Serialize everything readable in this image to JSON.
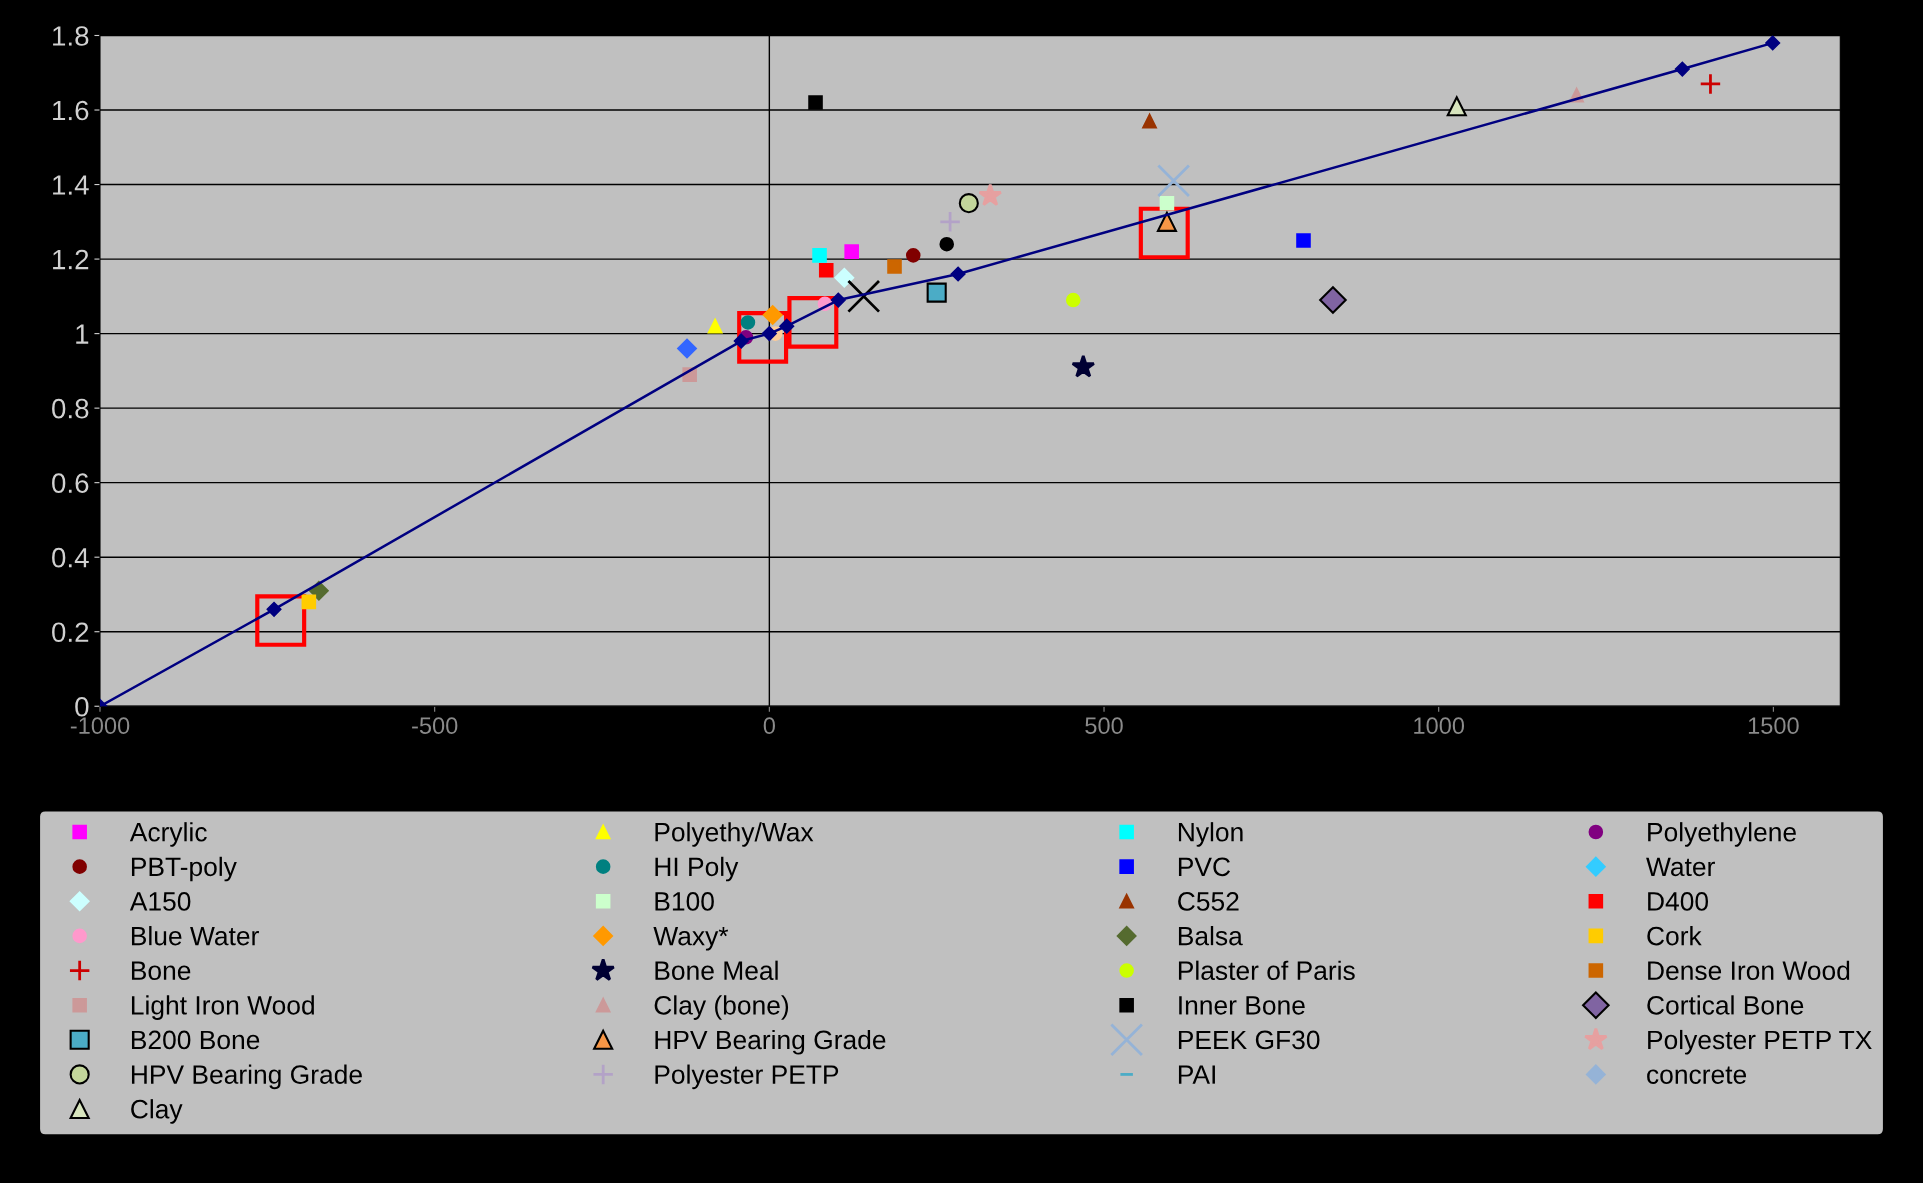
{
  "chart_data": {
    "type": "scatter",
    "xlim": [
      -1000,
      1600
    ],
    "xticks": [
      -1000,
      -500,
      0,
      500,
      1000,
      1500
    ],
    "ylim": [
      0,
      1.8
    ],
    "yticks": [
      0,
      0.2,
      0.4,
      0.6,
      0.8,
      1,
      1.2,
      1.4,
      1.6,
      1.8
    ],
    "grid": "y",
    "legend": "bottom",
    "ref_lines": [
      {
        "axis": "x",
        "value": 0,
        "color": "#000000"
      }
    ],
    "series": [
      {
        "type": "line",
        "color": "#000080",
        "marker": "diamond",
        "x": [
          -1000,
          -740,
          -42,
          0,
          26,
          103,
          282,
          1364,
          1499
        ],
        "values": [
          0,
          0.26,
          0.98,
          1.0,
          1.02,
          1.09,
          1.16,
          1.71,
          1.78
        ]
      },
      {
        "name": "Acrylic",
        "color": "#ff00ff",
        "marker": "square",
        "x": [
          123
        ],
        "values": [
          1.22
        ]
      },
      {
        "name": "Polyethy/Wax",
        "color": "#ffff00",
        "marker": "triangle",
        "x": [
          -81
        ],
        "values": [
          1.02
        ]
      },
      {
        "name": "Nylon",
        "color": "#00ffff",
        "marker": "square",
        "x": [
          75
        ],
        "values": [
          1.21
        ]
      },
      {
        "name": "Polyethylene",
        "color": "#800080",
        "marker": "circle",
        "x": [
          -35
        ],
        "values": [
          0.99
        ]
      },
      {
        "name": "PBT-poly",
        "color": "#800000",
        "marker": "circle",
        "x": [
          215
        ],
        "values": [
          1.21
        ]
      },
      {
        "name": "HI Poly",
        "color": "#008080",
        "marker": "circle",
        "x": [
          -32
        ],
        "values": [
          1.03
        ]
      },
      {
        "name": "PVC",
        "color": "#0000ff",
        "marker": "square",
        "x": [
          798
        ],
        "values": [
          1.25
        ]
      },
      {
        "name": "Water",
        "color": "#33ccff",
        "marker": "diamond",
        "x": [
          null
        ],
        "values": [
          null
        ]
      },
      {
        "name": "A150",
        "color": "#ccffff",
        "marker": "diamond",
        "x": [
          112
        ],
        "values": [
          1.15
        ]
      },
      {
        "name": "B100",
        "color": "#ccffcc",
        "marker": "square",
        "x": [
          594
        ],
        "values": [
          1.35
        ]
      },
      {
        "name": "C552",
        "color": "#993300",
        "marker": "triangle",
        "x": [
          568
        ],
        "values": [
          1.57
        ]
      },
      {
        "name": "D400",
        "color": "#ff0000",
        "marker": "square",
        "x": [
          85
        ],
        "values": [
          1.17
        ]
      },
      {
        "name": "Blue Water",
        "color": "#ff99cc",
        "marker": "circle",
        "x": [
          83
        ],
        "values": [
          1.08
        ]
      },
      {
        "color": "#3366ff",
        "marker": "diamond",
        "x": [
          -123
        ],
        "values": [
          0.96
        ]
      },
      {
        "color": "#000000",
        "marker": "circle",
        "x": [
          265
        ],
        "values": [
          1.24
        ]
      },
      {
        "color": "#ffcc99",
        "marker": "circle",
        "x": [
          9
        ],
        "values": [
          1.0
        ]
      },
      {
        "name": "Waxy*",
        "color": "#ff9900",
        "marker": "diamond",
        "x": [
          5
        ],
        "values": [
          1.05
        ]
      },
      {
        "name": "Balsa",
        "color": "#556b2f",
        "marker": "diamond",
        "x": [
          -673
        ],
        "values": [
          0.31
        ]
      },
      {
        "name": "Cork",
        "color": "#ffcc00",
        "marker": "square",
        "x": [
          -688
        ],
        "values": [
          0.28
        ]
      },
      {
        "color": "#000000",
        "marker": "cross",
        "x": [
          141
        ],
        "values": [
          1.1
        ]
      },
      {
        "name": "Bone",
        "color": "#cc0000",
        "marker": "plus",
        "x": [
          1406
        ],
        "values": [
          1.67
        ]
      },
      {
        "name": "Bone Meal",
        "color": "#000033",
        "marker": "star",
        "x": [
          469
        ],
        "values": [
          0.91
        ]
      },
      {
        "name": "Plaster of Paris",
        "color": "#ccff00",
        "marker": "circle",
        "x": [
          454
        ],
        "values": [
          1.09
        ]
      },
      {
        "name": "Dense Iron Wood",
        "color": "#cc6600",
        "marker": "square",
        "x": [
          187
        ],
        "values": [
          1.18
        ]
      },
      {
        "name": "Light Iron Wood",
        "color": "#cc9999",
        "marker": "square",
        "x": [
          -119
        ],
        "values": [
          0.89
        ]
      },
      {
        "name": "Clay (bone)",
        "color": "#cc9999",
        "marker": "triangle",
        "x": [
          1206
        ],
        "values": [
          1.64
        ]
      },
      {
        "name": "Inner Bone",
        "color": "#000000",
        "marker": "square",
        "x": [
          69
        ],
        "values": [
          1.62
        ]
      },
      {
        "name": "Cortical Bone",
        "color": "#8064a2",
        "marker": "diamond",
        "x": [
          842
        ],
        "values": [
          1.09
        ]
      },
      {
        "name": "B200 Bone",
        "color": "#4bacc6",
        "marker": "square",
        "x": [
          250
        ],
        "values": [
          1.11
        ]
      },
      {
        "name": "HPV Bearing Grade",
        "color": "#f79646",
        "marker": "triangle",
        "x": [
          594
        ],
        "values": [
          1.3
        ]
      },
      {
        "name": "PEEK GF30",
        "color": "#95b3d7",
        "marker": "cross",
        "x": [
          604
        ],
        "values": [
          1.41
        ]
      },
      {
        "name": "Polyester PETP TX",
        "color": "#e6a0a0",
        "marker": "star",
        "x": [
          330
        ],
        "values": [
          1.37
        ]
      },
      {
        "name": "HPV Bearing Grade",
        "color": "#c3d69b",
        "marker": "circle",
        "x": [
          298
        ],
        "values": [
          1.35
        ]
      },
      {
        "name": "Polyester PETP",
        "color": "#b3a2c7",
        "marker": "plus",
        "x": [
          270
        ],
        "values": [
          1.3
        ]
      },
      {
        "name": "PAI",
        "color": "#4bacc6",
        "marker": "dash",
        "x": [
          null
        ],
        "values": [
          null
        ]
      },
      {
        "name": "concrete",
        "color": "#95b3d7",
        "marker": "diamond",
        "x": [
          null
        ],
        "values": [
          null
        ]
      },
      {
        "name": "Clay",
        "color": "#d7e4bd",
        "marker": "triangle",
        "x": [
          1027
        ],
        "values": [
          1.61
        ]
      }
    ]
  }
}
